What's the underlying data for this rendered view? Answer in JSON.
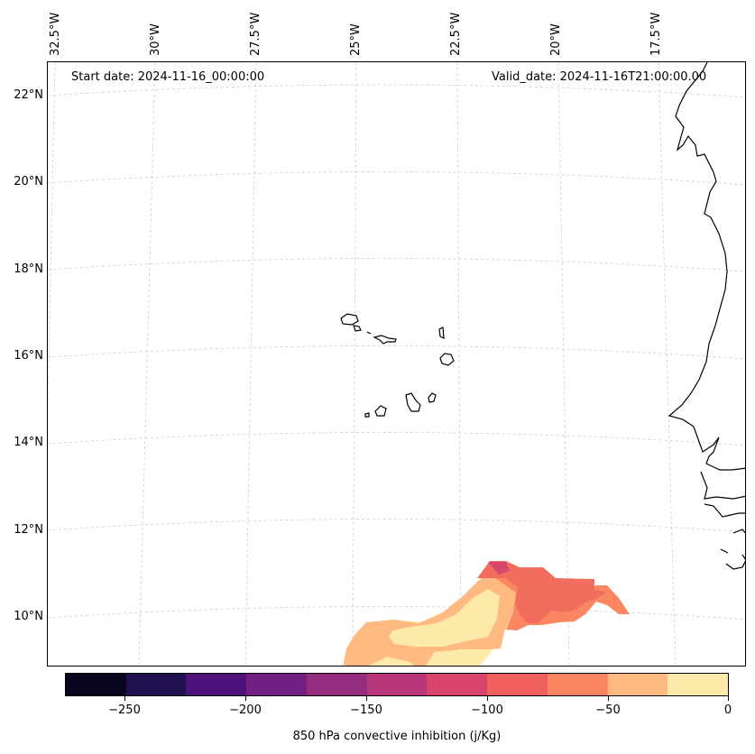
{
  "map": {
    "start_date": "Start date: 2024-11-16_00:00:00",
    "valid_date": "Valid_date: 2024-11-16T21:00:00.00",
    "lon_labels": [
      "32.5°W",
      "30°W",
      "27.5°W",
      "25°W",
      "22.5°W",
      "20°W",
      "17.5°W"
    ],
    "lat_labels": [
      "22°N",
      "20°N",
      "18°N",
      "16°N",
      "14°N",
      "12°N",
      "10°N"
    ],
    "colors": {
      "coastline": "#000000",
      "gridline": "#cccccc",
      "cin_0_to_25": "#fde9a9",
      "cin_25_to_50": "#feba80",
      "cin_50_to_75": "#fb8762",
      "cin_75_to_100": "#f16d5e",
      "cin_100_to_125": "#d8456c"
    }
  },
  "colorbar": {
    "label": "850 hPa convective inhibition (j/Kg)",
    "tick_labels": [
      "−250",
      "−200",
      "−150",
      "−100",
      "−50",
      "0"
    ],
    "range": [
      -275,
      0
    ],
    "colors": [
      "#07061c",
      "#221150",
      "#4f127b",
      "#721f81",
      "#942c80",
      "#b73779",
      "#d8456c",
      "#f1605d",
      "#fb8762",
      "#feba80",
      "#fde9a9"
    ]
  }
}
